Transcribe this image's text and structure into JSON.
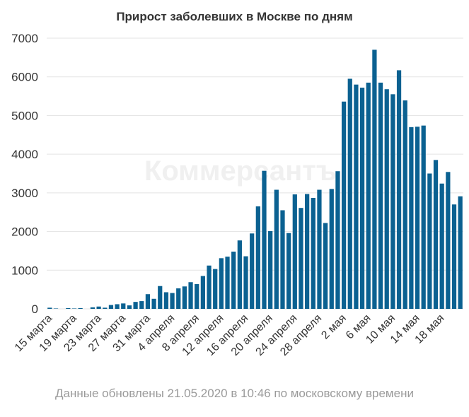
{
  "title": "Прирост заболевших в Москве по дням",
  "footer": "Данные обновлены 21.05.2020 в 10:46 по московскому времени",
  "watermark": "Коммерсантъ",
  "colors": {
    "bar": "#0b6191",
    "grid": "#e3e3e3",
    "text": "#333333",
    "footer": "#9a9a9a"
  },
  "chart_data": {
    "type": "bar",
    "title": "Прирост заболевших в Москве по дням",
    "xlabel": "",
    "ylabel": "",
    "ylim": [
      0,
      7000
    ],
    "yticks": [
      0,
      1000,
      2000,
      3000,
      4000,
      5000,
      6000,
      7000
    ],
    "grid": true,
    "categories": [
      "15 марта",
      "16 марта",
      "17 марта",
      "18 марта",
      "19 марта",
      "20 марта",
      "21 марта",
      "22 марта",
      "23 марта",
      "24 марта",
      "25 марта",
      "26 марта",
      "27 марта",
      "28 марта",
      "29 марта",
      "30 марта",
      "31 марта",
      "1 апреля",
      "2 апреля",
      "3 апреля",
      "4 апреля",
      "5 апреля",
      "6 апреля",
      "7 апреля",
      "8 апреля",
      "9 апреля",
      "10 апреля",
      "11 апреля",
      "12 апреля",
      "13 апреля",
      "14 апреля",
      "15 апреля",
      "16 апреля",
      "17 апреля",
      "18 апреля",
      "19 апреля",
      "20 апреля",
      "21 апреля",
      "22 апреля",
      "23 апреля",
      "24 апреля",
      "25 апреля",
      "26 апреля",
      "27 апреля",
      "28 апреля",
      "29 апреля",
      "30 апреля",
      "1 мая",
      "2 мая",
      "3 мая",
      "4 мая",
      "5 мая",
      "6 мая",
      "7 мая",
      "8 мая",
      "9 мая",
      "10 мая",
      "11 мая",
      "12 мая",
      "13 мая",
      "14 мая",
      "15 мая",
      "16 мая",
      "17 мая",
      "18 мая",
      "19 мая",
      "20 мая",
      "21 мая"
    ],
    "tick_labels": [
      "15 марта",
      "19 марта",
      "23 марта",
      "27 марта",
      "31 марта",
      "4 апреля",
      "8 апреля",
      "12 апреля",
      "16 апреля",
      "20 апреля",
      "24 апреля",
      "28 апреля",
      "2 мая",
      "6 мая",
      "10 мая",
      "14 мая",
      "18 мая"
    ],
    "tick_every": 4,
    "values": [
      30,
      10,
      0,
      20,
      10,
      20,
      0,
      40,
      60,
      30,
      100,
      120,
      140,
      90,
      180,
      200,
      380,
      260,
      590,
      430,
      410,
      530,
      580,
      690,
      640,
      850,
      1120,
      1030,
      1310,
      1350,
      1480,
      1770,
      1360,
      1950,
      2650,
      3570,
      2010,
      3080,
      2550,
      1960,
      2960,
      2610,
      2970,
      2870,
      3080,
      2220,
      3100,
      3560,
      5360,
      5950,
      5800,
      5720,
      5850,
      6700,
      5850,
      5680,
      5550,
      6170,
      5390,
      4700,
      4710,
      4740,
      3500,
      3850,
      3240,
      3540,
      2700,
      2910
    ]
  }
}
